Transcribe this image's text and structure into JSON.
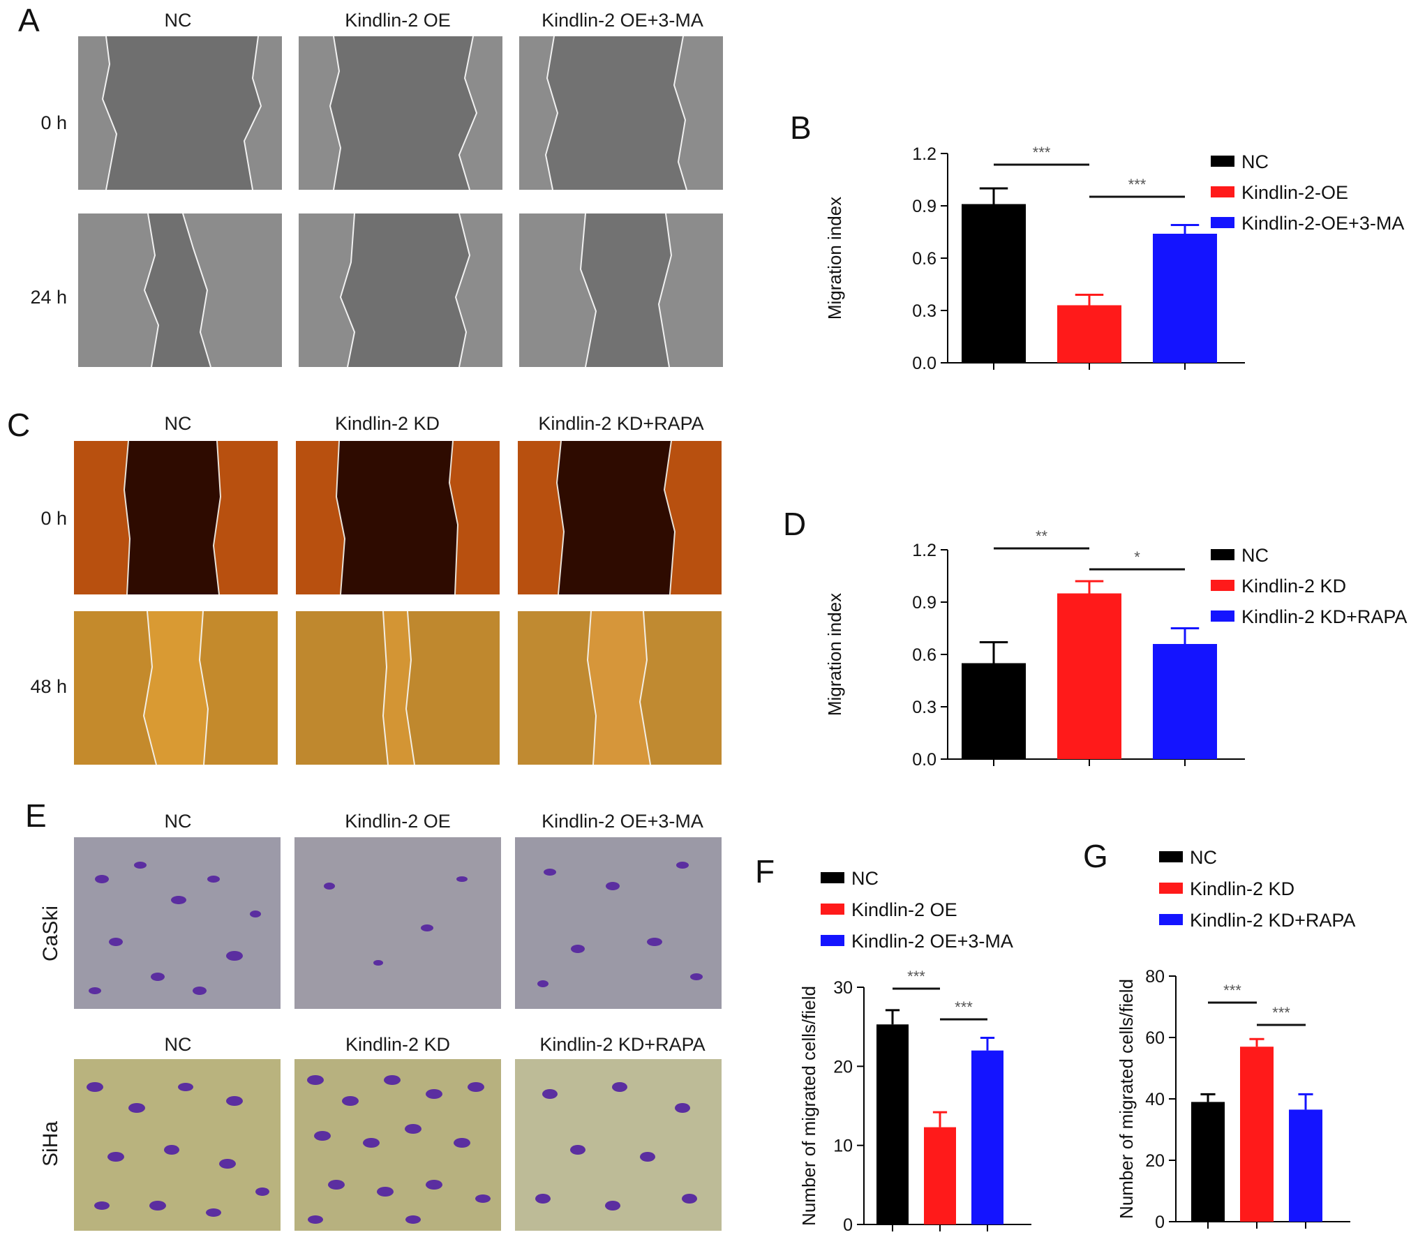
{
  "panels": {
    "A": {
      "letter": "A",
      "columns": [
        "NC",
        "Kindlin-2 OE",
        "Kindlin-2 OE+3-MA"
      ],
      "rows": [
        "0 h",
        "24 h"
      ]
    },
    "C": {
      "letter": "C",
      "columns": [
        "NC",
        "Kindlin-2 KD",
        "Kindlin-2 KD+RAPA"
      ],
      "rows": [
        "0 h",
        "48 h"
      ]
    },
    "E": {
      "letter": "E",
      "columns_top": [
        "NC",
        "Kindlin-2 OE",
        "Kindlin-2 OE+3-MA"
      ],
      "columns_bottom": [
        "NC",
        "Kindlin-2 KD",
        "Kindlin-2 KD+RAPA"
      ],
      "rows": [
        "CaSki",
        "SiHa"
      ]
    }
  },
  "colors": {
    "black": "#000000",
    "red": "#ff1a1a",
    "blue": "#1414ff",
    "sig": "#555555",
    "scratch_gray": "#6e6e6e",
    "scratch_dark_red": "#2e0b00",
    "scratch_orange": "#b8500f",
    "scratch_gold": "#d99a33",
    "transwell_bg": "#9c9aa8",
    "transwell_bg2": "#b9b37e",
    "cell_purple": "#5b2ea0"
  },
  "chart_data": [
    {
      "letter": "B",
      "type": "bar",
      "categories": [
        "NC",
        "Kindlin-2-OE",
        "Kindlin-2-OE+3-MA"
      ],
      "values": [
        0.91,
        0.33,
        0.74
      ],
      "errors": [
        0.09,
        0.06,
        0.05
      ],
      "colors": [
        "#000000",
        "#ff1a1a",
        "#1414ff"
      ],
      "ylabel": "Migration index",
      "ylim": [
        0,
        1.2
      ],
      "yticks": [
        "0.0",
        "0.3",
        "0.6",
        "0.9",
        "1.2"
      ],
      "legend": [
        "NC",
        "Kindlin-2-OE",
        "Kindlin-2-OE+3-MA"
      ],
      "legend_position": "right",
      "significance": [
        "***",
        "***"
      ]
    },
    {
      "letter": "D",
      "type": "bar",
      "categories": [
        "NC",
        "Kindlin-2 KD",
        "Kindlin-2 KD+RAPA"
      ],
      "values": [
        0.55,
        0.95,
        0.66
      ],
      "errors": [
        0.12,
        0.07,
        0.09
      ],
      "colors": [
        "#000000",
        "#ff1a1a",
        "#1414ff"
      ],
      "ylabel": "Migration index",
      "ylim": [
        0,
        1.2
      ],
      "yticks": [
        "0.0",
        "0.3",
        "0.6",
        "0.9",
        "1.2"
      ],
      "legend": [
        "NC",
        "Kindlin-2 KD",
        "Kindlin-2 KD+RAPA"
      ],
      "legend_position": "right",
      "significance": [
        "**",
        "*"
      ]
    },
    {
      "letter": "F",
      "type": "bar",
      "categories": [
        "NC",
        "Kindlin-2 OE",
        "Kindlin-2 OE+3-MA"
      ],
      "values": [
        25.3,
        12.3,
        22.0
      ],
      "errors": [
        1.8,
        1.9,
        1.6
      ],
      "colors": [
        "#000000",
        "#ff1a1a",
        "#1414ff"
      ],
      "ylabel": "Number of migrated cells/field",
      "ylim": [
        0,
        30
      ],
      "yticks": [
        "0",
        "10",
        "20",
        "30"
      ],
      "legend": [
        "NC",
        "Kindlin-2 OE",
        "Kindlin-2 OE+3-MA"
      ],
      "legend_position": "top",
      "significance": [
        "***",
        "***"
      ]
    },
    {
      "letter": "G",
      "type": "bar",
      "categories": [
        "NC",
        "Kindlin-2 KD",
        "Kindlin-2 KD+RAPA"
      ],
      "values": [
        39,
        57,
        36.5
      ],
      "errors": [
        2.5,
        2.5,
        5
      ],
      "colors": [
        "#000000",
        "#ff1a1a",
        "#1414ff"
      ],
      "ylabel": "Number of migrated cells/field",
      "ylim": [
        0,
        80
      ],
      "yticks": [
        "0",
        "20",
        "40",
        "60",
        "80"
      ],
      "legend": [
        "NC",
        "Kindlin-2 KD",
        "Kindlin-2 KD+RAPA"
      ],
      "legend_position": "top",
      "significance": [
        "***",
        "***"
      ]
    }
  ]
}
